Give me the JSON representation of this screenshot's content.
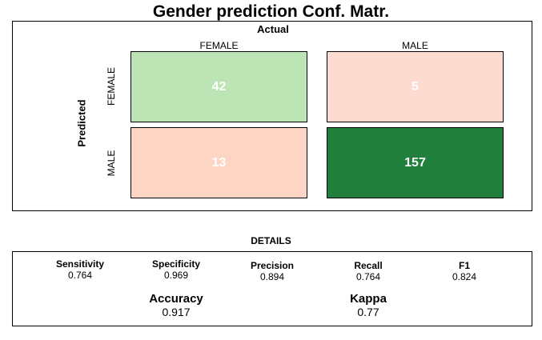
{
  "chart_data": {
    "type": "heatmap",
    "title": "Gender prediction Conf. Matr.",
    "xlabel": "Actual",
    "ylabel": "Predicted",
    "columns": [
      "FEMALE",
      "MALE"
    ],
    "rows": [
      "FEMALE",
      "MALE"
    ],
    "values": [
      [
        42,
        5
      ],
      [
        13,
        157
      ]
    ],
    "colors": [
      [
        "#bde4b5",
        "#fddbd1"
      ],
      [
        "#fdd5c4",
        "#1f7f3b"
      ]
    ]
  },
  "details": {
    "title": "DETAILS",
    "metrics": [
      {
        "name": "Sensitivity",
        "value": "0.764"
      },
      {
        "name": "Specificity",
        "value": "0.969"
      },
      {
        "name": "Precision",
        "value": "0.894"
      },
      {
        "name": "Recall",
        "value": "0.764"
      },
      {
        "name": "F1",
        "value": "0.824"
      }
    ],
    "accuracy": {
      "name": "Accuracy",
      "value": "0.917"
    },
    "kappa": {
      "name": "Kappa",
      "value": "0.77"
    }
  }
}
